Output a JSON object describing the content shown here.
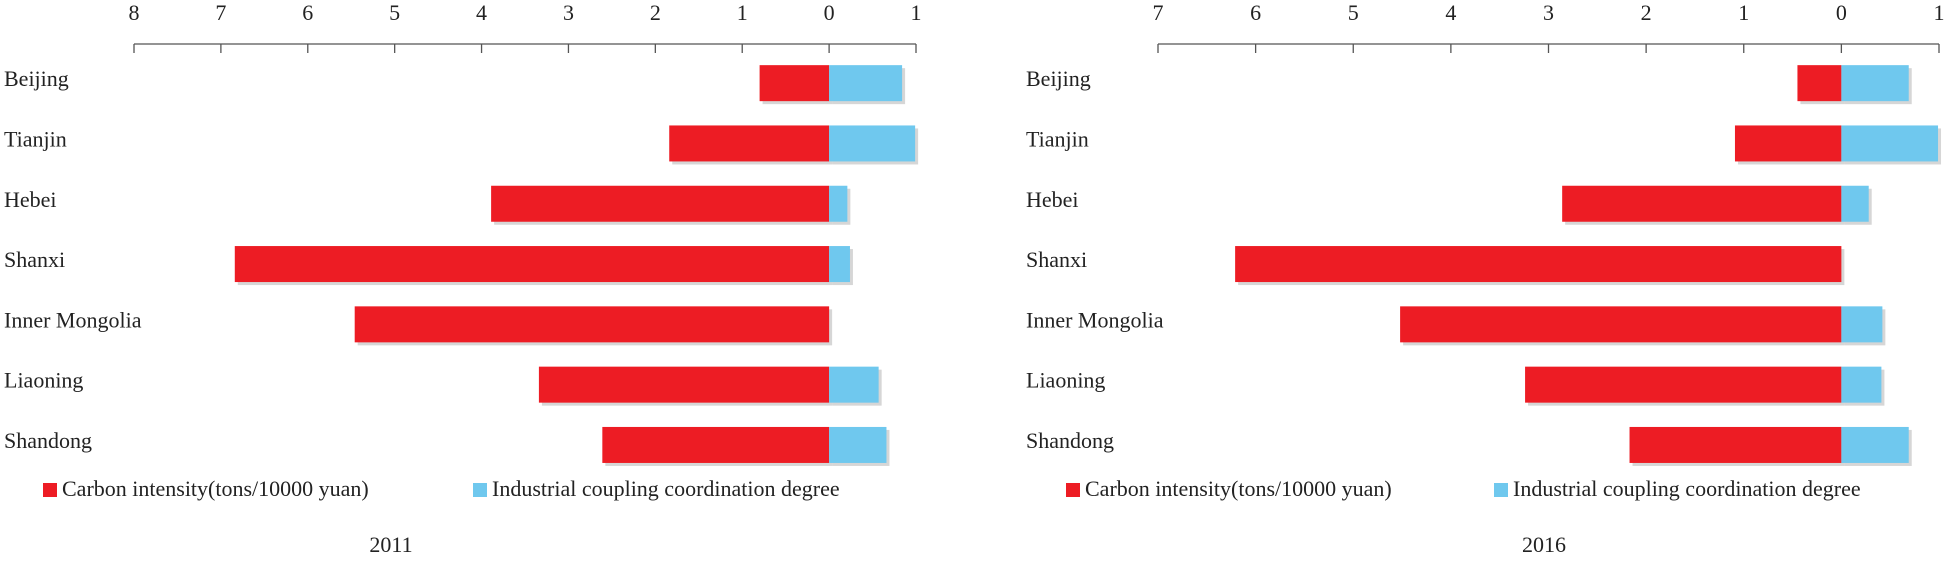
{
  "chart_data": [
    {
      "type": "bar",
      "orientation": "horizontal",
      "title": "2011",
      "categories": [
        "Beijing",
        "Tianjin",
        "Hebei",
        "Shanxi",
        "Inner Mongolia",
        "Liaoning",
        "Shandong"
      ],
      "series": [
        {
          "name": "Carbon intensity(tons/10000 yuan)",
          "color": "#ed1c24",
          "values": [
            -0.8,
            -1.84,
            -3.89,
            -6.84,
            -5.46,
            -3.34,
            -2.61
          ]
        },
        {
          "name": "Industrial coupling coordination degree",
          "color": "#6fc8ee",
          "values": [
            0.84,
            0.99,
            0.21,
            0.24,
            0,
            0.57,
            0.66
          ]
        }
      ],
      "xlim": [
        -8,
        1
      ],
      "xticks": [
        {
          "value": -8,
          "label": "8"
        },
        {
          "value": -7,
          "label": "7"
        },
        {
          "value": -6,
          "label": "6"
        },
        {
          "value": -5,
          "label": "5"
        },
        {
          "value": -4,
          "label": "4"
        },
        {
          "value": -3,
          "label": "3"
        },
        {
          "value": -2,
          "label": "2"
        },
        {
          "value": -1,
          "label": "1"
        },
        0,
        1
      ],
      "legend": "bottom"
    },
    {
      "type": "bar",
      "orientation": "horizontal",
      "title": "2016",
      "categories": [
        "Beijing",
        "Tianjin",
        "Hebei",
        "Shanxi",
        "Inner Mongolia",
        "Liaoning",
        "Shandong"
      ],
      "series": [
        {
          "name": "Carbon intensity(tons/10000 yuan)",
          "color": "#ed1c24",
          "values": [
            -0.45,
            -1.09,
            -2.86,
            -6.21,
            -4.52,
            -3.24,
            -2.17
          ]
        },
        {
          "name": "Industrial coupling coordination degree",
          "color": "#6fc8ee",
          "values": [
            0.69,
            0.99,
            0.28,
            0,
            0.42,
            0.41,
            0.69
          ]
        }
      ],
      "xlim": [
        -7,
        1
      ],
      "xticks": [
        {
          "value": -7,
          "label": "7"
        },
        {
          "value": -6,
          "label": "6"
        },
        {
          "value": -5,
          "label": "5"
        },
        {
          "value": -4,
          "label": "4"
        },
        {
          "value": -3,
          "label": "3"
        },
        {
          "value": -2,
          "label": "2"
        },
        {
          "value": -1,
          "label": "1"
        },
        0,
        1
      ],
      "legend": "bottom"
    }
  ]
}
